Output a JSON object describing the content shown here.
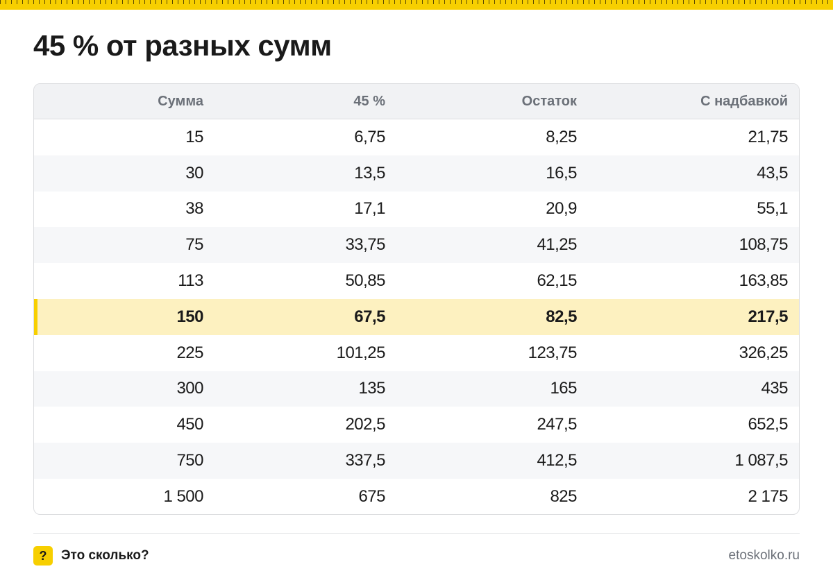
{
  "header": {
    "title": "45 % от разных сумм"
  },
  "table": {
    "columns": [
      "Сумма",
      "45 %",
      "Остаток",
      "С надбавкой"
    ],
    "highlight_row": 5,
    "rows": [
      [
        "15",
        "6,75",
        "8,25",
        "21,75"
      ],
      [
        "30",
        "13,5",
        "16,5",
        "43,5"
      ],
      [
        "38",
        "17,1",
        "20,9",
        "55,1"
      ],
      [
        "75",
        "33,75",
        "41,25",
        "108,75"
      ],
      [
        "113",
        "50,85",
        "62,15",
        "163,85"
      ],
      [
        "150",
        "67,5",
        "82,5",
        "217,5"
      ],
      [
        "225",
        "101,25",
        "123,75",
        "326,25"
      ],
      [
        "300",
        "135",
        "165",
        "435"
      ],
      [
        "450",
        "202,5",
        "247,5",
        "652,5"
      ],
      [
        "750",
        "337,5",
        "412,5",
        "1 087,5"
      ],
      [
        "1 500",
        "675",
        "825",
        "2 175"
      ]
    ]
  },
  "footer": {
    "icon": "?",
    "brand": "Это сколько?",
    "site": "etoskolko.ru"
  }
}
